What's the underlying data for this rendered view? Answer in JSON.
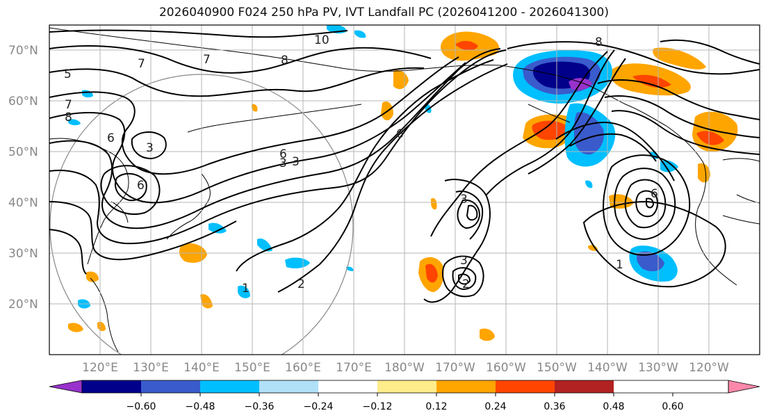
{
  "title": "2026040900 F024 250 hPa PV, IVT Landfall PC (2026041200 - 2026041300)",
  "lat_labels": [
    "70°N",
    "60°N",
    "50°N",
    "40°N",
    "30°N",
    "20°N"
  ],
  "lon_labels": [
    "120°E",
    "130°E",
    "140°E",
    "150°E",
    "160°E",
    "170°E",
    "180°W",
    "170°W",
    "160°W",
    "150°W",
    "140°W",
    "130°W",
    "120°W"
  ],
  "colorbar": {
    "colors": [
      "#9932cc",
      "#00008b",
      "#3a5bcc",
      "#00bfff",
      "#b0e0f8",
      "#ffffff",
      "#ffec8b",
      "#ffa500",
      "#ff4500",
      "#b22222",
      "#ff88aa"
    ],
    "tick_labels": [
      "−0.60",
      "−0.48",
      "−0.36",
      "−0.24",
      "−0.12",
      "0.12",
      "0.24",
      "0.36",
      "0.48",
      "0.60"
    ]
  },
  "contour_labels": [
    "10",
    "8",
    "7",
    "7",
    "5",
    "7",
    "8",
    "3",
    "6",
    "3",
    "6",
    "3",
    "2",
    "3",
    "3",
    "2",
    "1",
    "6",
    "6",
    "1",
    "8",
    "6"
  ]
}
